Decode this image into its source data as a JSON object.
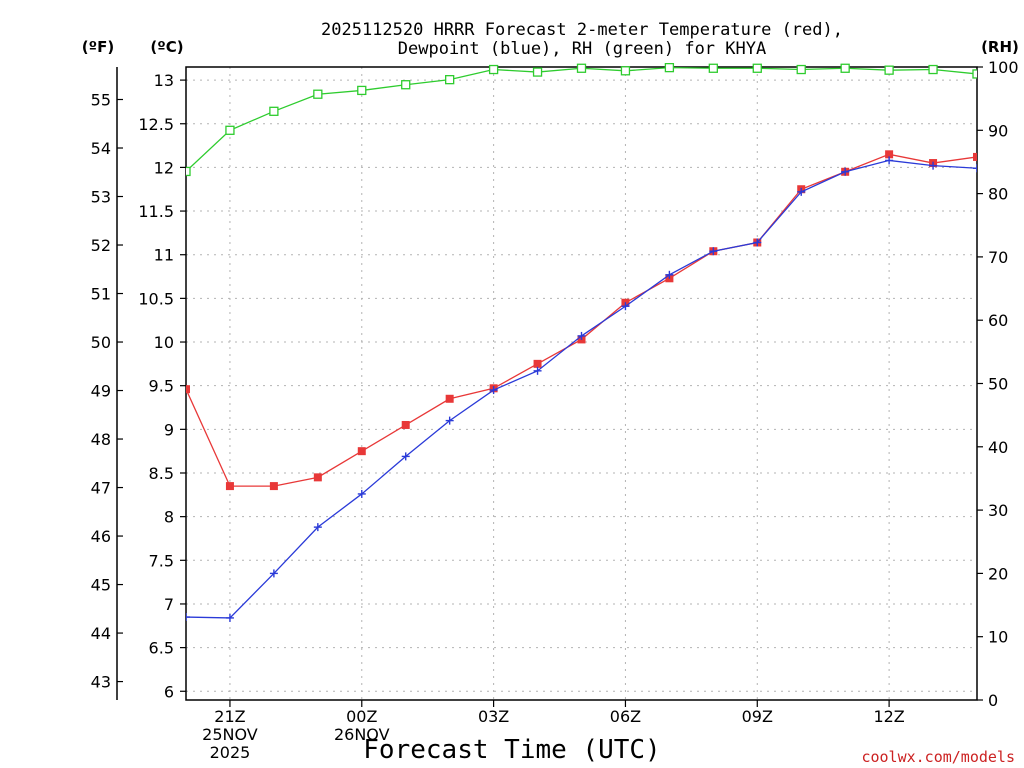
{
  "chart_data": {
    "type": "line",
    "title_line1": "2025112520 HRRR Forecast 2-meter Temperature (red),",
    "title_line2": "Dewpoint (blue), RH (green) for KHYA",
    "xlabel": "Forecast Time (UTC)",
    "units": {
      "fahrenheit": "(ºF)",
      "celsius": "(ºC)",
      "rh": "(RH)"
    },
    "x_hours": [
      20,
      21,
      22,
      23,
      24,
      25,
      26,
      27,
      28,
      29,
      30,
      31,
      32,
      33,
      34,
      35,
      36,
      37,
      38
    ],
    "x_ticks": [
      {
        "hour": 21,
        "lines": [
          "21Z",
          "25NOV",
          "2025"
        ]
      },
      {
        "hour": 24,
        "lines": [
          "00Z",
          "26NOV"
        ]
      },
      {
        "hour": 27,
        "lines": [
          "03Z"
        ]
      },
      {
        "hour": 30,
        "lines": [
          "06Z"
        ]
      },
      {
        "hour": 33,
        "lines": [
          "09Z"
        ]
      },
      {
        "hour": 36,
        "lines": [
          "12Z"
        ]
      }
    ],
    "xlim": [
      20,
      38
    ],
    "celsius_axis": {
      "ylim": [
        5.9,
        13.15
      ],
      "ticks": [
        "6",
        "6.5",
        "7",
        "7.5",
        "8",
        "8.5",
        "9",
        "9.5",
        "10",
        "10.5",
        "11",
        "11.5",
        "12",
        "12.5",
        "13"
      ]
    },
    "fahrenheit_axis": {
      "ticks": [
        "43",
        "44",
        "45",
        "46",
        "47",
        "48",
        "49",
        "50",
        "51",
        "52",
        "53",
        "54",
        "55"
      ]
    },
    "rh_axis": {
      "ylim": [
        0,
        100
      ],
      "ticks": [
        "0",
        "10",
        "20",
        "30",
        "40",
        "50",
        "60",
        "70",
        "80",
        "90",
        "100"
      ]
    },
    "series": [
      {
        "name": "Temperature",
        "unit": "C",
        "color": "#e83838",
        "marker": "filled-square",
        "values": [
          9.46,
          8.35,
          8.35,
          8.45,
          8.75,
          9.05,
          9.35,
          9.47,
          9.75,
          10.03,
          10.45,
          10.73,
          11.04,
          11.14,
          11.75,
          11.95,
          12.15,
          12.05,
          12.12
        ]
      },
      {
        "name": "Dewpoint",
        "unit": "C",
        "color": "#2a3ad8",
        "marker": "plus",
        "values": [
          6.85,
          6.84,
          7.35,
          7.88,
          8.26,
          8.69,
          9.1,
          9.45,
          9.67,
          10.07,
          10.41,
          10.77,
          11.04,
          11.14,
          11.72,
          11.95,
          12.08,
          12.02,
          11.99
        ]
      },
      {
        "name": "RH",
        "unit": "%",
        "color": "#2ecc2e",
        "marker": "open-square",
        "values": [
          83.5,
          90,
          93,
          95.7,
          96.3,
          97.2,
          98,
          99.6,
          99.2,
          99.8,
          99.4,
          99.9,
          99.8,
          99.8,
          99.6,
          99.8,
          99.5,
          99.6,
          98.9
        ]
      }
    ],
    "credit": "coolwx.com/models",
    "credit_color": "#cc2222",
    "grid": true
  }
}
